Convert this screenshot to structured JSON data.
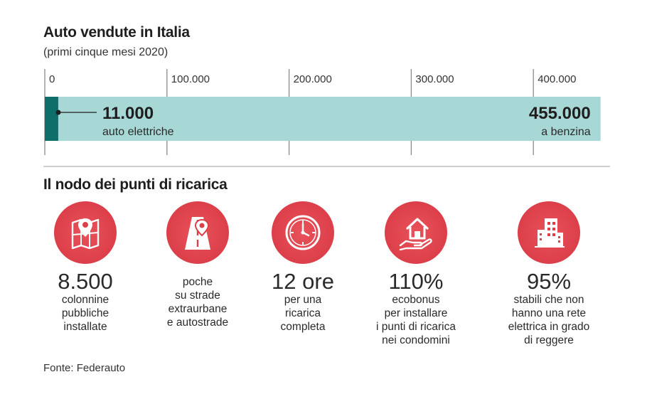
{
  "title": "Auto vendute in Italia",
  "subtitle": "(primi cinque mesi 2020)",
  "chart_data": {
    "type": "bar",
    "orientation": "horizontal",
    "title": "Auto vendute in Italia",
    "subtitle": "(primi cinque mesi 2020)",
    "categories": [
      "auto elettriche",
      "a benzina"
    ],
    "values": [
      11000,
      455000
    ],
    "value_labels": [
      "11.000",
      "455.000"
    ],
    "xlim": [
      0,
      455000
    ],
    "ticks": [
      0,
      100000,
      200000,
      300000,
      400000
    ],
    "tick_labels": [
      "0",
      "100.000",
      "200.000",
      "300.000",
      "400.000"
    ],
    "colors": {
      "electric": "#0d6e6a",
      "petrol": "#a7d8d6"
    }
  },
  "section_title": "Il nodo dei punti di ricarica",
  "items": [
    {
      "icon": "map-pin-icon",
      "big": "8.500",
      "desc": "colonnine\npubbliche\ninstallate"
    },
    {
      "icon": "road-pin-icon",
      "big": "",
      "desc": "poche\nsu strade\nextraurbane\ne autostrade"
    },
    {
      "icon": "clock-icon",
      "big": "12 ore",
      "desc": "per una\nricarica\ncompleta"
    },
    {
      "icon": "house-hand-icon",
      "big": "110%",
      "desc": "ecobonus\nper installare\ni punti di ricarica\nnei condomini"
    },
    {
      "icon": "building-icon",
      "big": "95%",
      "desc": "stabili che non\nhanno una rete\nelettrica in grado\ndi reggere"
    }
  ],
  "accent_color": "#dc3f49",
  "source": "Fonte: Federauto"
}
